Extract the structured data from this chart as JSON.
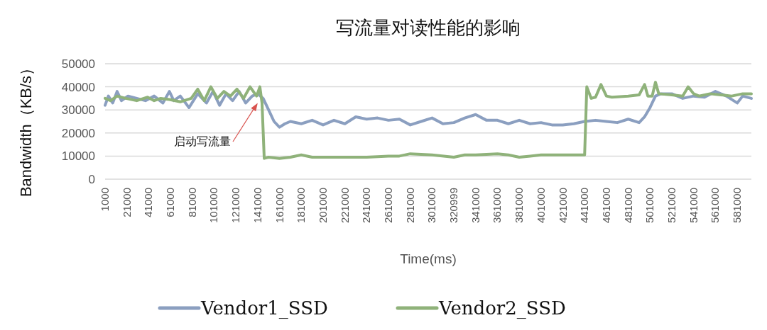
{
  "chart_data": {
    "type": "line",
    "title": "写流量对读性能的影响",
    "xlabel": "Time(ms)",
    "ylabel": "Bandwidth（KB/s）",
    "xlim": [
      1000,
      594000
    ],
    "xticks": [
      1000,
      21000,
      41000,
      61000,
      81000,
      101000,
      121000,
      141000,
      161000,
      181000,
      201000,
      221000,
      241000,
      261000,
      281000,
      301000,
      320999,
      341000,
      361000,
      381000,
      401000,
      421000,
      441000,
      461000,
      481000,
      501000,
      521000,
      541000,
      561000,
      581000
    ],
    "ylim": [
      0,
      50000
    ],
    "yticks": [
      0,
      10000,
      20000,
      30000,
      40000,
      50000
    ],
    "grid": "y",
    "legend": "bottom",
    "marker": "none",
    "line_style": "solid",
    "annotations": [
      {
        "text": "启动写流量",
        "x": 141000,
        "y": 33000
      }
    ],
    "series": [
      {
        "name": "Vendor1_SSD",
        "color": "#8b9fc0",
        "x": [
          1000,
          4000,
          8000,
          12000,
          16000,
          22000,
          30000,
          38000,
          46000,
          54000,
          60000,
          64000,
          70000,
          78000,
          86000,
          94000,
          100000,
          106000,
          112000,
          118000,
          124000,
          130000,
          136000,
          141000,
          146000,
          151000,
          156000,
          161000,
          166000,
          171000,
          181000,
          191000,
          201000,
          211000,
          221000,
          231000,
          241000,
          251000,
          261000,
          271000,
          281000,
          291000,
          301000,
          311000,
          320999,
          331000,
          341000,
          351000,
          361000,
          371000,
          381000,
          391000,
          401000,
          411000,
          421000,
          431000,
          441000,
          451000,
          461000,
          471000,
          481000,
          491000,
          496000,
          501000,
          506000,
          511000,
          521000,
          531000,
          541000,
          551000,
          561000,
          571000,
          581000,
          586000,
          594000
        ],
        "values": [
          32000,
          36000,
          33000,
          38000,
          34000,
          36000,
          35000,
          34000,
          36000,
          33000,
          38000,
          34000,
          36000,
          31000,
          37000,
          33000,
          38000,
          32000,
          37000,
          34000,
          38000,
          33000,
          36000,
          37000,
          35000,
          30000,
          25000,
          22500,
          24000,
          25000,
          24000,
          25500,
          23500,
          25500,
          24000,
          27000,
          26000,
          26500,
          25500,
          26000,
          23500,
          25000,
          26500,
          24000,
          24500,
          26500,
          28000,
          25500,
          25500,
          24000,
          25500,
          24000,
          24500,
          23500,
          23500,
          24000,
          25000,
          25500,
          25000,
          24500,
          26000,
          24500,
          27000,
          31000,
          36000,
          37000,
          37000,
          35000,
          36000,
          35500,
          38000,
          36000,
          33000,
          36000,
          35000
        ]
      },
      {
        "name": "Vendor2_SSD",
        "color": "#8fb27a",
        "x": [
          1000,
          6000,
          12000,
          20000,
          30000,
          40000,
          46000,
          52000,
          60000,
          70000,
          80000,
          86000,
          92000,
          98000,
          104000,
          110000,
          116000,
          122000,
          128000,
          134000,
          140000,
          143000,
          145000,
          147000,
          151000,
          161000,
          171000,
          181000,
          191000,
          201000,
          221000,
          241000,
          261000,
          271000,
          281000,
          301000,
          320999,
          331000,
          341000,
          361000,
          371000,
          381000,
          391000,
          401000,
          421000,
          441000,
          443000,
          447000,
          451000,
          456000,
          461000,
          466000,
          481000,
          491000,
          496000,
          499000,
          503000,
          506000,
          509000,
          521000,
          531000,
          536000,
          541000,
          546000,
          556000,
          566000,
          576000,
          586000,
          594000
        ],
        "values": [
          35000,
          34000,
          36000,
          35000,
          34000,
          35500,
          34000,
          35000,
          34500,
          33500,
          35000,
          39000,
          34000,
          40000,
          35000,
          38000,
          36000,
          39000,
          35000,
          40000,
          36000,
          40000,
          33000,
          9000,
          9500,
          9000,
          9500,
          10500,
          9500,
          9500,
          9500,
          9500,
          10000,
          10000,
          11000,
          10500,
          9500,
          10500,
          10500,
          11000,
          10500,
          9500,
          10000,
          10500,
          10500,
          10500,
          40000,
          35000,
          35500,
          41000,
          36000,
          35500,
          36000,
          36500,
          41000,
          36000,
          36000,
          42000,
          37000,
          36500,
          36000,
          40000,
          37000,
          36000,
          37000,
          36500,
          36000,
          37000,
          37000
        ]
      }
    ]
  }
}
